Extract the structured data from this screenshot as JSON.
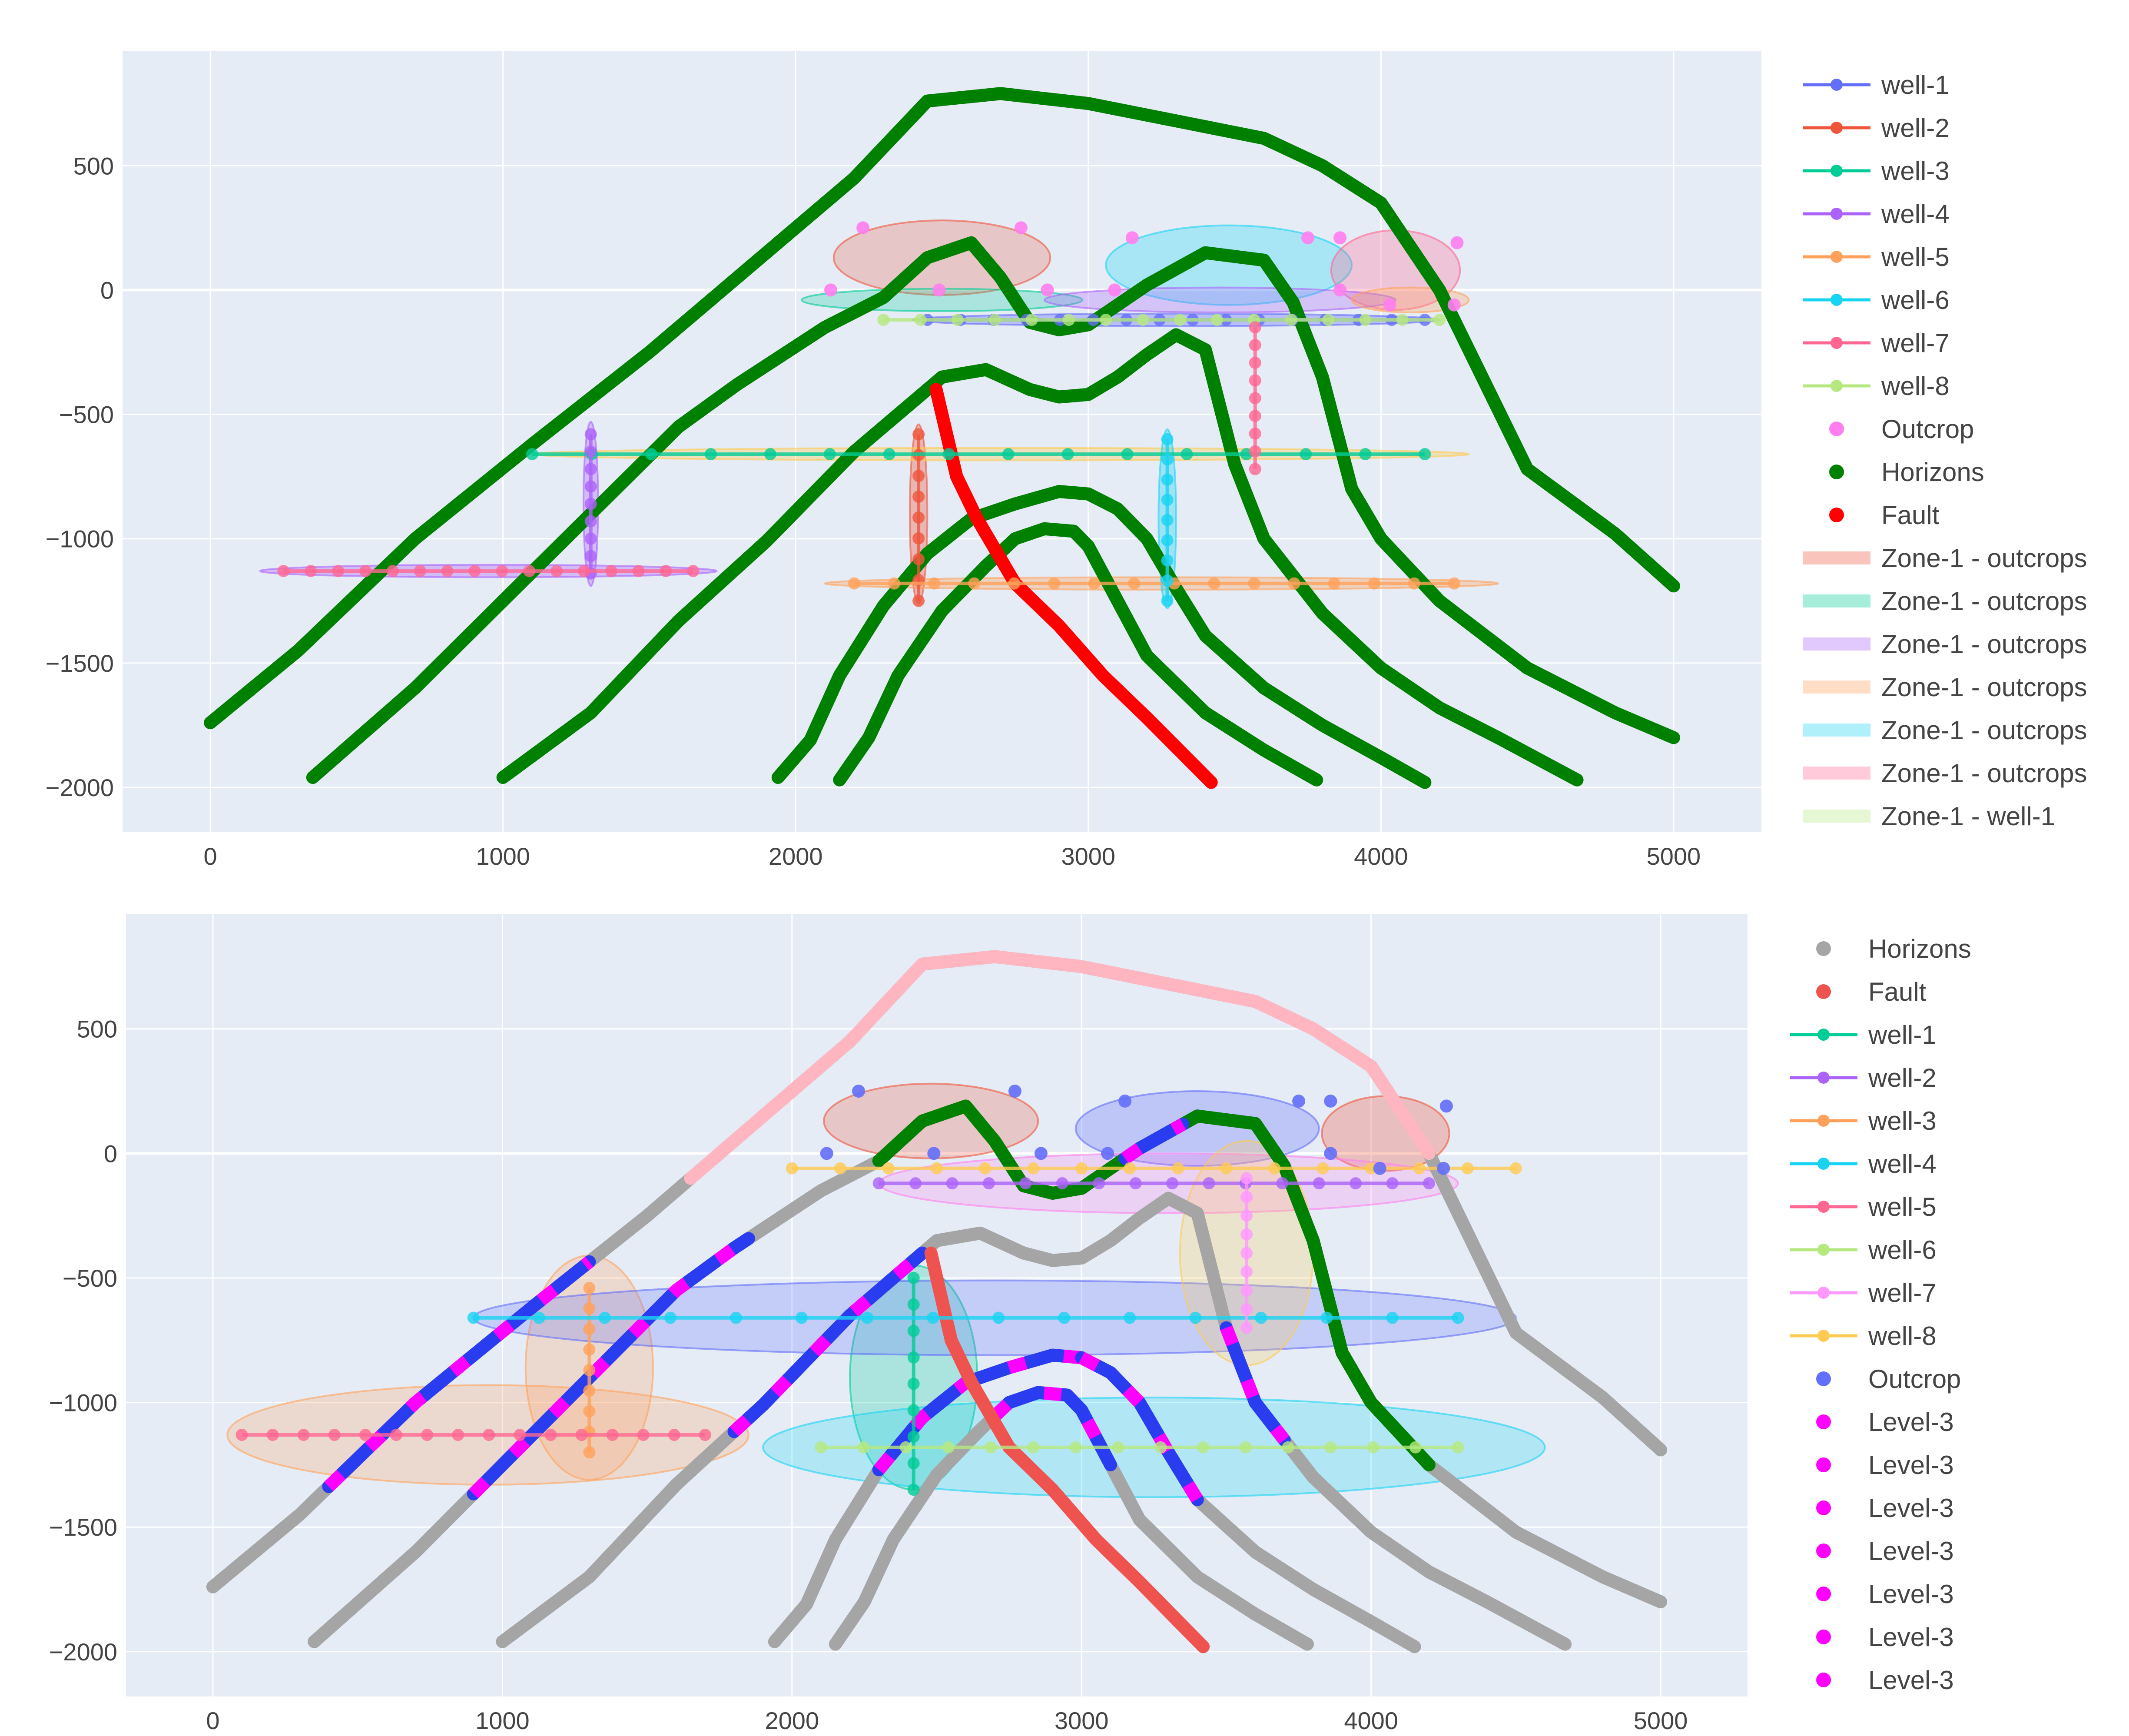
{
  "chart_data": [
    {
      "type": "line",
      "title": "",
      "xlabel": "",
      "ylabel": "",
      "xlim": [
        -300,
        5300
      ],
      "ylim": [
        -2180,
        960
      ],
      "x_ticks": [
        0,
        1000,
        2000,
        3000,
        4000,
        5000
      ],
      "y_ticks": [
        500,
        0,
        -500,
        -1000,
        -1500,
        -2000
      ],
      "x_tick_labels": [
        "0",
        "1000",
        "2000",
        "3000",
        "4000",
        "5000"
      ],
      "y_tick_labels": [
        "500",
        "0",
        "−500",
        "−1000",
        "−1500",
        "−2000"
      ],
      "grid": true,
      "legend_position": "right",
      "horizons": [
        {
          "x": [
            0,
            300,
            700,
            1100,
            1500,
            1900,
            2200,
            2450,
            2700,
            3000,
            3300,
            3600,
            3800,
            4000,
            4200,
            4500,
            4800,
            5000
          ],
          "y": [
            -1740,
            -1450,
            -1000,
            -620,
            -250,
            150,
            450,
            760,
            790,
            750,
            680,
            610,
            500,
            350,
            0,
            -720,
            -980,
            -1190
          ]
        },
        {
          "x": [
            350,
            700,
            1000,
            1300,
            1600,
            1800,
            2100,
            2300,
            2450,
            2600,
            2700,
            2800,
            2900,
            3000,
            3200,
            3400,
            3600,
            3700,
            3800,
            3900,
            4000,
            4200,
            4500,
            4800,
            5000
          ],
          "y": [
            -1960,
            -1600,
            -1250,
            -900,
            -550,
            -380,
            -150,
            -30,
            130,
            190,
            50,
            -130,
            -160,
            -140,
            20,
            150,
            120,
            -50,
            -350,
            -800,
            -1000,
            -1250,
            -1520,
            -1700,
            -1800
          ]
        },
        {
          "x": [
            1000,
            1300,
            1600,
            1900,
            2200,
            2400,
            2500,
            2650,
            2800,
            2900,
            3000,
            3100,
            3200,
            3300,
            3400,
            3500,
            3600,
            3800,
            4000,
            4200,
            4400,
            4670
          ],
          "y": [
            -1960,
            -1700,
            -1330,
            -1010,
            -650,
            -450,
            -350,
            -320,
            -400,
            -430,
            -420,
            -350,
            -260,
            -180,
            -240,
            -700,
            -1000,
            -1300,
            -1520,
            -1680,
            -1800,
            -1970
          ]
        },
        {
          "x": [
            1940,
            2050,
            2150,
            2300,
            2450,
            2600,
            2750,
            2900,
            3000,
            3100,
            3200,
            3300,
            3400,
            3600,
            3800,
            4000,
            4150
          ],
          "y": [
            -1960,
            -1810,
            -1550,
            -1270,
            -1060,
            -920,
            -860,
            -810,
            -820,
            -880,
            -1000,
            -1200,
            -1390,
            -1600,
            -1750,
            -1880,
            -1980
          ]
        },
        {
          "x": [
            2150,
            2250,
            2350,
            2500,
            2650,
            2750,
            2850,
            2950,
            3000,
            3100,
            3200,
            3400,
            3600,
            3780
          ],
          "y": [
            -1970,
            -1800,
            -1550,
            -1290,
            -1110,
            -1000,
            -960,
            -970,
            -1030,
            -1250,
            -1470,
            -1700,
            -1850,
            -1970
          ]
        }
      ],
      "fault": {
        "x": [
          2480,
          2550,
          2620,
          2750,
          2900,
          3050,
          3200,
          3420
        ],
        "y": [
          -400,
          -750,
          -920,
          -1180,
          -1350,
          -1550,
          -1720,
          -1980
        ]
      },
      "series": [
        {
          "name": "well-1",
          "color": "#636efa",
          "y": -120,
          "x_range": [
            2450,
            4150
          ],
          "ellipse": {
            "cx": 3300,
            "cy": -120,
            "rx": 900,
            "ry": 25,
            "fill": "#636efa"
          }
        },
        {
          "name": "well-2",
          "color": "#ef553b",
          "x": 2420,
          "y_range": [
            -580,
            -1250
          ],
          "ellipse": {
            "cx": 2420,
            "cy": -900,
            "rx": 30,
            "ry": 360,
            "fill": "#ef553b"
          }
        },
        {
          "name": "well-3",
          "color": "#00cc96",
          "y": -660,
          "x_range": [
            1100,
            4150
          ],
          "ellipse": {
            "cx": 2700,
            "cy": -660,
            "rx": 1600,
            "ry": 25,
            "fill": "#fecb52"
          }
        },
        {
          "name": "well-4",
          "color": "#ab63fa",
          "x": 1300,
          "y_range": [
            -580,
            -1140
          ],
          "ellipse": {
            "cx": 1300,
            "cy": -860,
            "rx": 25,
            "ry": 330,
            "fill": "#ab63fa"
          }
        },
        {
          "name": "well-5",
          "color": "#ffa15a",
          "y": -1180,
          "x_range": [
            2200,
            4250
          ],
          "ellipse": {
            "cx": 3250,
            "cy": -1180,
            "rx": 1150,
            "ry": 25,
            "fill": "#ffa15a"
          }
        },
        {
          "name": "well-6",
          "color": "#19d3f3",
          "x": 3270,
          "y_range": [
            -600,
            -1250
          ],
          "ellipse": {
            "cx": 3270,
            "cy": -920,
            "rx": 30,
            "ry": 360,
            "fill": "#19d3f3"
          }
        },
        {
          "name": "well-7",
          "color": "#ff6692",
          "y": -1130,
          "x_range": [
            250,
            1650
          ],
          "ellipse": {
            "cx": 950,
            "cy": -1130,
            "rx": 780,
            "ry": 25,
            "fill": "#ab63fa"
          }
        },
        {
          "name": "well-8",
          "color": "#b6e880",
          "y": -120,
          "x_range": [
            2300,
            4200
          ]
        }
      ],
      "vertical_well_extra": {
        "color": "#ff6692",
        "x": 3570,
        "y_range": [
          -150,
          -720
        ]
      },
      "outcrop_ellipses": [
        {
          "cx": 2500,
          "cy": 130,
          "rx": 370,
          "ry": 150,
          "fill": "#ef553b",
          "opacity": 0.25
        },
        {
          "cx": 3480,
          "cy": 100,
          "rx": 420,
          "ry": 160,
          "fill": "#19d3f3",
          "opacity": 0.3
        },
        {
          "cx": 4050,
          "cy": 80,
          "rx": 220,
          "ry": 160,
          "fill": "#ff6692",
          "opacity": 0.3
        },
        {
          "cx": 2500,
          "cy": -40,
          "rx": 480,
          "ry": 45,
          "fill": "#00cc96",
          "opacity": 0.25
        },
        {
          "cx": 3450,
          "cy": -40,
          "rx": 600,
          "ry": 50,
          "fill": "#ab63fa",
          "opacity": 0.3
        },
        {
          "cx": 4100,
          "cy": -40,
          "rx": 200,
          "ry": 50,
          "fill": "#ffa15a",
          "opacity": 0.3
        }
      ],
      "outcrop_points": {
        "color": "#ff7eef",
        "x": [
          2230,
          2770,
          3150,
          3750,
          3860,
          4260,
          2120,
          2490,
          2860,
          3090,
          3860,
          4030,
          4250
        ],
        "y": [
          250,
          250,
          210,
          210,
          210,
          190,
          0,
          0,
          0,
          0,
          0,
          -60,
          -60
        ]
      },
      "legend": [
        {
          "label": "well-1",
          "color": "#636efa",
          "kind": "line"
        },
        {
          "label": "well-2",
          "color": "#ef553b",
          "kind": "line"
        },
        {
          "label": "well-3",
          "color": "#00cc96",
          "kind": "line"
        },
        {
          "label": "well-4",
          "color": "#ab63fa",
          "kind": "line"
        },
        {
          "label": "well-5",
          "color": "#ffa15a",
          "kind": "line"
        },
        {
          "label": "well-6",
          "color": "#19d3f3",
          "kind": "line"
        },
        {
          "label": "well-7",
          "color": "#ff6692",
          "kind": "line"
        },
        {
          "label": "well-8",
          "color": "#b6e880",
          "kind": "line"
        },
        {
          "label": "Outcrop",
          "color": "#ff7eef",
          "kind": "marker"
        },
        {
          "label": "Horizons",
          "color": "#008000",
          "kind": "marker"
        },
        {
          "label": "Fault",
          "color": "#ff0000",
          "kind": "marker"
        },
        {
          "label": "Zone-1 - outcrops",
          "color": "#ef553b",
          "kind": "band"
        },
        {
          "label": "Zone-1 - outcrops",
          "color": "#00cc96",
          "kind": "band"
        },
        {
          "label": "Zone-1 - outcrops",
          "color": "#ab63fa",
          "kind": "band"
        },
        {
          "label": "Zone-1 - outcrops",
          "color": "#ffa15a",
          "kind": "band"
        },
        {
          "label": "Zone-1 - outcrops",
          "color": "#19d3f3",
          "kind": "band"
        },
        {
          "label": "Zone-1 - outcrops",
          "color": "#ff6692",
          "kind": "band"
        },
        {
          "label": "Zone-1 - well-1",
          "color": "#b6e880",
          "kind": "band"
        }
      ]
    },
    {
      "type": "line",
      "title": "",
      "xlabel": "",
      "ylabel": "",
      "xlim": [
        -300,
        5300
      ],
      "ylim": [
        -2180,
        960
      ],
      "x_ticks": [
        0,
        1000,
        2000,
        3000,
        4000,
        5000
      ],
      "y_ticks": [
        500,
        0,
        -500,
        -1000,
        -1500,
        -2000
      ],
      "x_tick_labels": [
        "0",
        "1000",
        "2000",
        "3000",
        "4000",
        "5000"
      ],
      "y_tick_labels": [
        "500",
        "0",
        "−500",
        "−1000",
        "−1500",
        "−2000"
      ],
      "grid": true,
      "legend_position": "right",
      "horizon_color": "#a5a5a5",
      "fault_color": "#ef5350",
      "top_horizon_highlight": {
        "color": "#ffb6c1",
        "x_range": [
          1650,
          4200
        ]
      },
      "green_segments": [
        {
          "horizon": 1,
          "x_range": [
            2300,
            4200
          ]
        }
      ],
      "blue_segments": [
        {
          "horizon": 0,
          "x_range": [
            400,
            1300
          ]
        },
        {
          "horizon": 1,
          "x_range": [
            900,
            1850
          ]
        },
        {
          "horizon": 2,
          "x_range": [
            1800,
            2450
          ]
        },
        {
          "horizon": 3,
          "x_range": [
            2300,
            3000
          ]
        },
        {
          "horizon": 1,
          "x_range": [
            3150,
            3350
          ]
        },
        {
          "horizon": 2,
          "x_range": [
            3500,
            3700
          ]
        },
        {
          "horizon": 3,
          "x_range": [
            3000,
            3400
          ]
        },
        {
          "horizon": 4,
          "x_range": [
            2700,
            3100
          ]
        }
      ],
      "series": [
        {
          "name": "well-1",
          "color": "#00cc96",
          "x": 2420,
          "y_range": [
            -500,
            -1350
          ],
          "ellipse": {
            "cx": 2420,
            "cy": -900,
            "rx": 220,
            "ry": 450,
            "fill": "#00cc96"
          }
        },
        {
          "name": "well-2",
          "color": "#ab63fa",
          "y": -120,
          "x_range": [
            2300,
            4200
          ],
          "ellipse": {
            "cx": 3300,
            "cy": -120,
            "rx": 1000,
            "ry": 120,
            "fill": "#ff7eef"
          }
        },
        {
          "name": "well-3",
          "color": "#ffa15a",
          "x": 1300,
          "y_range": [
            -540,
            -1200
          ],
          "ellipse": {
            "cx": 1300,
            "cy": -860,
            "rx": 220,
            "ry": 450,
            "fill": "#ffa15a"
          }
        },
        {
          "name": "well-4",
          "color": "#19d3f3",
          "y": -660,
          "x_range": [
            900,
            4300
          ],
          "ellipse": {
            "cx": 2700,
            "cy": -660,
            "rx": 1800,
            "ry": 150,
            "fill": "#636efa"
          }
        },
        {
          "name": "well-5",
          "color": "#ff6692",
          "y": -1130,
          "x_range": [
            100,
            1700
          ],
          "ellipse": {
            "cx": 950,
            "cy": -1130,
            "rx": 900,
            "ry": 200,
            "fill": "#ffa15a"
          }
        },
        {
          "name": "well-6",
          "color": "#b6e880",
          "y": -1180,
          "x_range": [
            2100,
            4300
          ],
          "ellipse": {
            "cx": 3250,
            "cy": -1180,
            "rx": 1350,
            "ry": 200,
            "fill": "#19d3f3"
          }
        },
        {
          "name": "well-7",
          "color": "#ff97ff",
          "x": 3570,
          "y_range": [
            -100,
            -700
          ],
          "ellipse": {
            "cx": 3570,
            "cy": -400,
            "rx": 230,
            "ry": 450,
            "fill": "#fecb52"
          }
        },
        {
          "name": "well-8",
          "color": "#fecb52",
          "y": -60,
          "x_range": [
            2000,
            4500
          ]
        }
      ],
      "outcrop_ellipses": [
        {
          "cx": 2480,
          "cy": 130,
          "rx": 370,
          "ry": 150,
          "fill": "#ef553b",
          "opacity": 0.25
        },
        {
          "cx": 3400,
          "cy": 100,
          "rx": 420,
          "ry": 150,
          "fill": "#636efa",
          "opacity": 0.3
        },
        {
          "cx": 4050,
          "cy": 80,
          "rx": 220,
          "ry": 150,
          "fill": "#ef553b",
          "opacity": 0.3
        }
      ],
      "outcrop_points": {
        "color": "#636efa",
        "x": [
          2230,
          2770,
          3150,
          3750,
          3860,
          4260,
          2120,
          2490,
          2860,
          3090,
          3860,
          4030,
          4250
        ],
        "y": [
          250,
          250,
          210,
          210,
          210,
          190,
          0,
          0,
          0,
          0,
          0,
          -60,
          -60
        ]
      },
      "legend": [
        {
          "label": "Horizons",
          "color": "#a5a5a5",
          "kind": "marker"
        },
        {
          "label": "Fault",
          "color": "#ef5350",
          "kind": "marker"
        },
        {
          "label": "well-1",
          "color": "#00cc96",
          "kind": "line"
        },
        {
          "label": "well-2",
          "color": "#ab63fa",
          "kind": "line"
        },
        {
          "label": "well-3",
          "color": "#ffa15a",
          "kind": "line"
        },
        {
          "label": "well-4",
          "color": "#19d3f3",
          "kind": "line"
        },
        {
          "label": "well-5",
          "color": "#ff6692",
          "kind": "line"
        },
        {
          "label": "well-6",
          "color": "#b6e880",
          "kind": "line"
        },
        {
          "label": "well-7",
          "color": "#ff97ff",
          "kind": "line"
        },
        {
          "label": "well-8",
          "color": "#fecb52",
          "kind": "line"
        },
        {
          "label": "Outcrop",
          "color": "#636efa",
          "kind": "marker"
        },
        {
          "label": "Level-3",
          "color": "#ff00ff",
          "kind": "marker"
        },
        {
          "label": "Level-3",
          "color": "#ff00ff",
          "kind": "marker"
        },
        {
          "label": "Level-3",
          "color": "#ff00ff",
          "kind": "marker"
        },
        {
          "label": "Level-3",
          "color": "#ff00ff",
          "kind": "marker"
        },
        {
          "label": "Level-3",
          "color": "#ff00ff",
          "kind": "marker"
        },
        {
          "label": "Level-3",
          "color": "#ff00ff",
          "kind": "marker"
        },
        {
          "label": "Level-3",
          "color": "#ff00ff",
          "kind": "marker"
        }
      ]
    }
  ]
}
